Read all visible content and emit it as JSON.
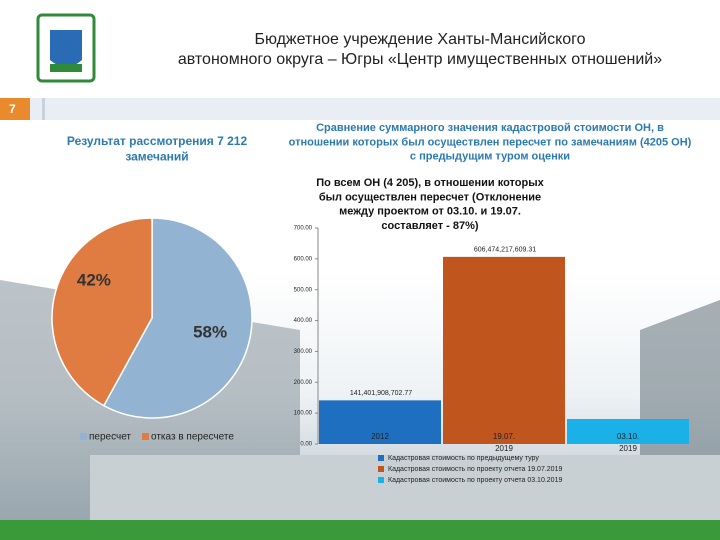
{
  "header": {
    "title_line1": "Бюджетное учреждение Ханты-Мансийского",
    "title_line2": "автономного округа – Югры «Центр имущественных отношений»",
    "slide_number": "7"
  },
  "chart_data": [
    {
      "type": "pie",
      "title": "Результат рассмотрения 7 212 замечаний",
      "categories": [
        "пересчет",
        "отказ в пересчете"
      ],
      "values": [
        58,
        42
      ],
      "value_labels": [
        "58%",
        "42%"
      ],
      "colors": [
        "#93b3d3",
        "#e07b42"
      ]
    },
    {
      "type": "bar",
      "title": "Сравнение суммарного значения кадастровой стоимости ОН, в отношении которых был осуществлен пересчет по замечаниям (4205 ОН) с предыдущим туром оценки",
      "subtitle": "По всем ОН (4 205), в отношении которых был осуществлен пересчет (Отклонение между проектом от 03.10. и 19.07. составляет - 87%)",
      "categories": [
        "2012",
        "19.07. 2019",
        "03.10. 2019"
      ],
      "series": [
        {
          "name": "Кадастровая стоимость по предыдущему туру",
          "color": "#1f6fc0",
          "values": [
            141.40190870277,
            null,
            null
          ],
          "value_labels": [
            "141,401,908,702.77",
            null,
            null
          ]
        },
        {
          "name": "Кадастровая стоимость по проекту отчета 19.07.2019",
          "color": "#c0561e",
          "values": [
            null,
            606.47421760931,
            null
          ],
          "value_labels": [
            null,
            "606,474,217,609.31",
            null
          ]
        },
        {
          "name": "Кадастровая стоимость по проекту отчета 03.10.2019",
          "color": "#1ab0e8",
          "values": [
            null,
            null,
            81
          ],
          "value_labels": [
            null,
            null,
            null
          ]
        }
      ],
      "ylim": [
        0,
        700
      ],
      "yticks": [
        {
          "value": 0,
          "label": "0.00"
        },
        {
          "value": 100,
          "label": "100.00"
        },
        {
          "value": 200,
          "label": "200.00"
        },
        {
          "value": 300,
          "label": "300.00"
        },
        {
          "value": 400,
          "label": "400.00"
        },
        {
          "value": 500,
          "label": "500.00"
        },
        {
          "value": 600,
          "label": "600.00"
        },
        {
          "value": 700,
          "label": "700.00"
        }
      ]
    }
  ]
}
